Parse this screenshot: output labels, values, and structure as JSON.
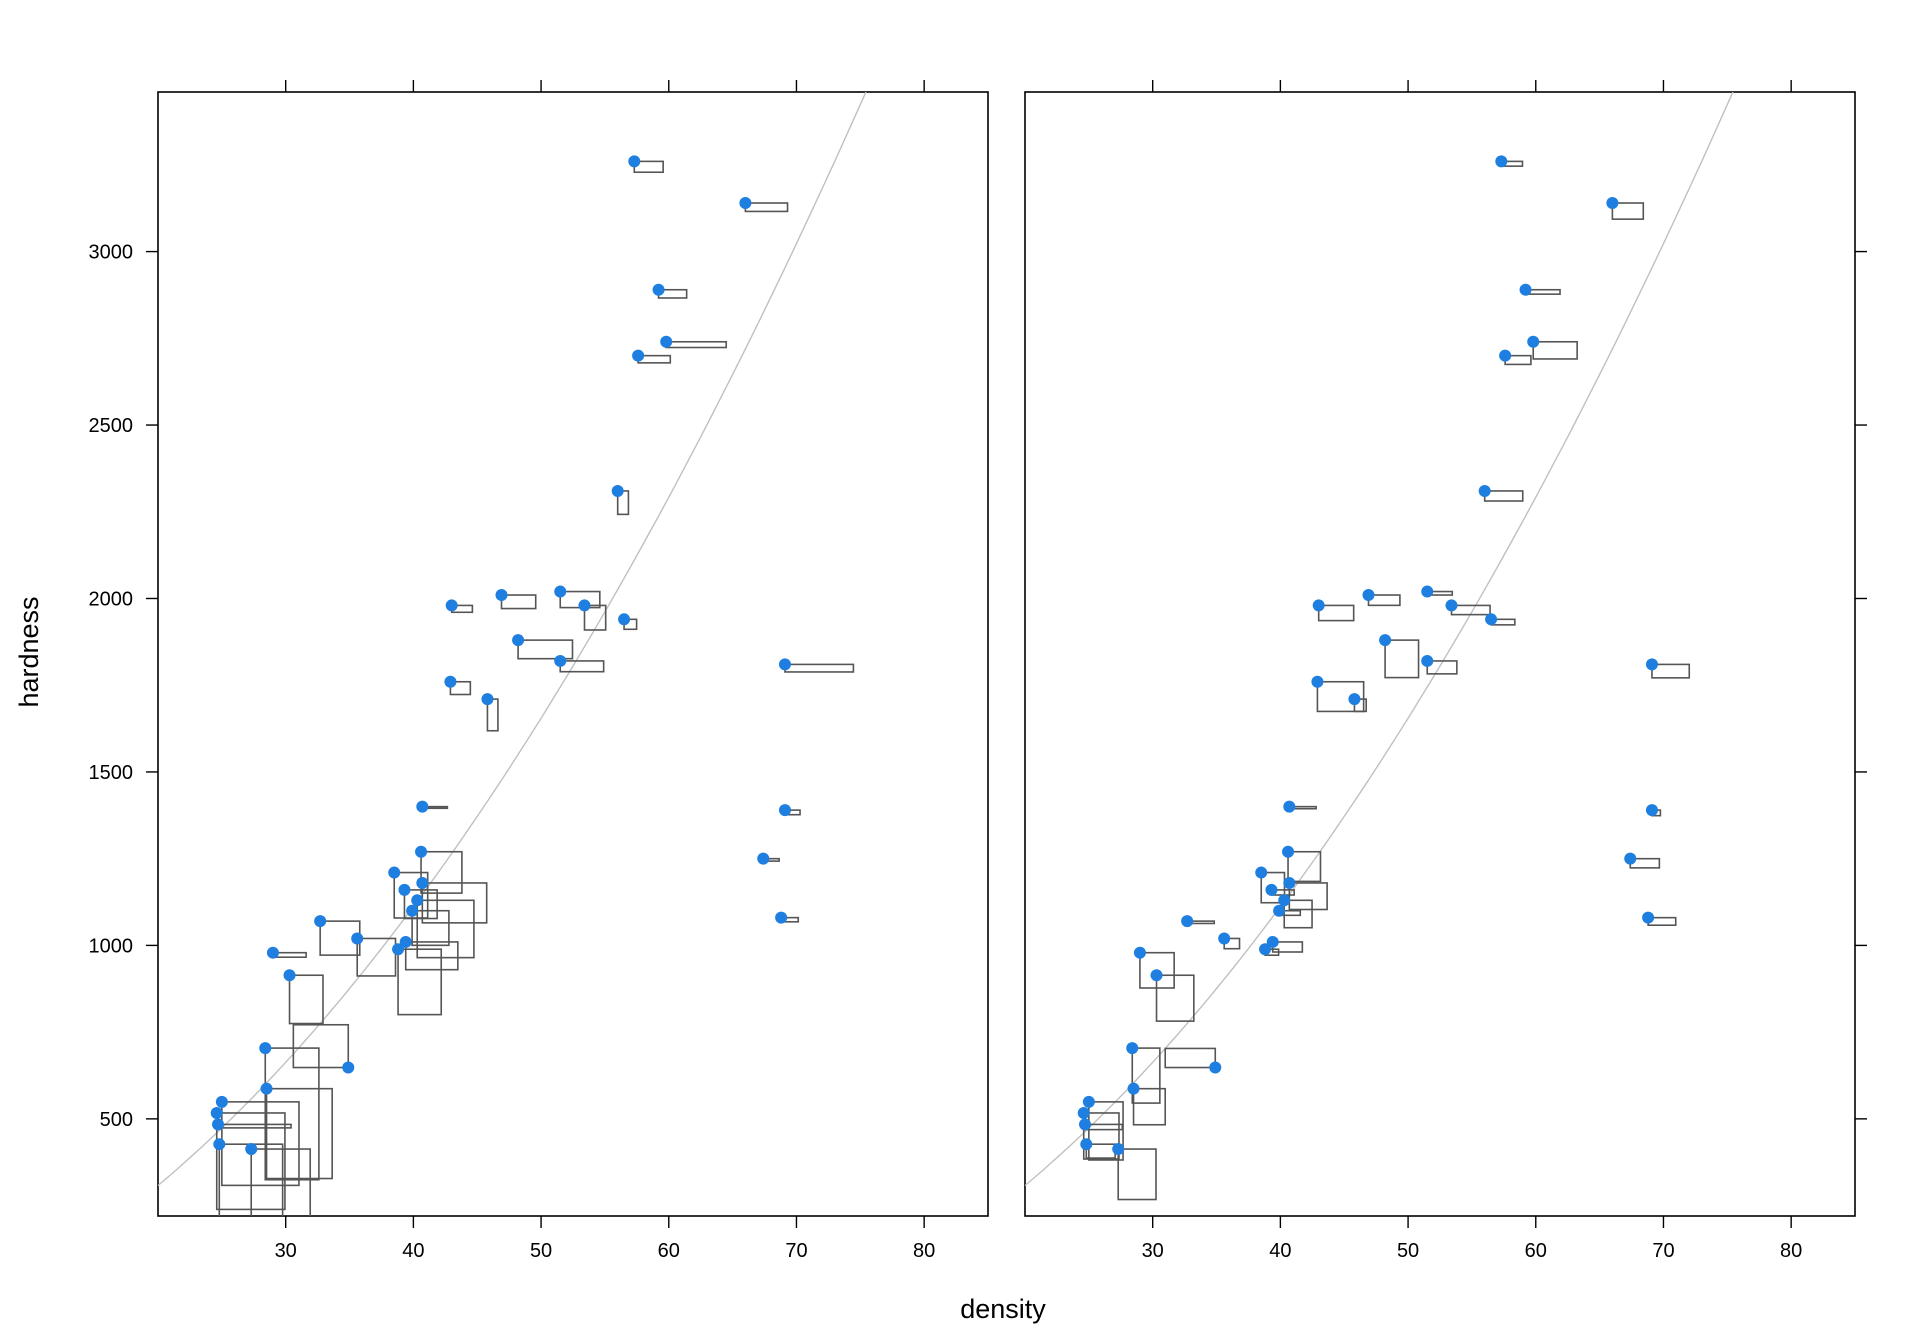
{
  "chart_data": {
    "type": "scatter",
    "xlabel": "density",
    "ylabel": "hardness",
    "xlim": [
      20,
      85
    ],
    "ylim": [
      220,
      3460
    ],
    "xticks": [
      30,
      40,
      50,
      60,
      70,
      80
    ],
    "yticks": [
      500,
      1000,
      1500,
      2000,
      2500,
      3000
    ],
    "x": [
      24.7,
      24.8,
      27.3,
      24.6,
      25.0,
      34.9,
      28.5,
      28.4,
      29.0,
      30.3,
      32.7,
      35.6,
      38.5,
      38.8,
      39.3,
      39.4,
      39.9,
      40.3,
      40.6,
      40.7,
      40.7,
      42.9,
      45.8,
      46.9,
      48.2,
      43.0,
      51.5,
      51.5,
      53.4,
      56.0,
      56.5,
      57.3,
      57.6,
      59.2,
      59.8,
      66.0,
      67.4,
      68.8,
      69.1,
      69.1
    ],
    "y": [
      484,
      427,
      413,
      517,
      549,
      648,
      587,
      704,
      979,
      914,
      1070,
      1020,
      1210,
      989,
      1160,
      1010,
      1100,
      1130,
      1270,
      1180,
      1400,
      1760,
      1710,
      2010,
      1880,
      1980,
      1820,
      2020,
      1980,
      2310,
      1940,
      3260,
      2700,
      2890,
      2740,
      3140,
      1250,
      1080,
      1390,
      1810
    ],
    "panels": [
      {
        "boxes": [
          [
            28.6,
            4.0
          ],
          [
            24.8,
            90.8
          ],
          [
            23.1,
            152.7
          ],
          [
            26.7,
            111.2
          ],
          [
            30.2,
            96.3
          ],
          [
            -21.5,
            -49.3
          ],
          [
            25.7,
            103.6
          ],
          [
            21.0,
            151.8
          ],
          [
            13.0,
            5.2
          ],
          [
            13.1,
            55.7
          ],
          [
            15.5,
            39.2
          ],
          [
            15.0,
            43.2
          ],
          [
            13.1,
            52.4
          ],
          [
            16.9,
            75.4
          ],
          [
            12.8,
            33.0
          ],
          [
            20.4,
            32.0
          ],
          [
            14.4,
            39.9
          ],
          [
            22.2,
            66.1
          ],
          [
            16.0,
            47.7
          ],
          [
            25.2,
            46.0
          ],
          [
            9.8,
            1.9
          ],
          [
            7.8,
            14.7
          ],
          [
            4.1,
            36.5
          ],
          [
            13.4,
            15.6
          ],
          [
            21.3,
            21.4
          ],
          [
            8.1,
            7.9
          ],
          [
            17.0,
            12.4
          ],
          [
            15.5,
            18.5
          ],
          [
            8.3,
            28.3
          ],
          [
            4.2,
            27.0
          ],
          [
            4.9,
            11.5
          ],
          [
            11.3,
            12.5
          ],
          [
            12.6,
            8.3
          ],
          [
            11.0,
            9.5
          ],
          [
            23.5,
            6.6
          ],
          [
            16.5,
            9.7
          ],
          [
            6.2,
            2.8
          ],
          [
            6.7,
            4.8
          ],
          [
            5.9,
            5.3
          ],
          [
            26.8,
            8.7
          ]
        ]
      },
      {
        "boxes": [
          [
            14.6,
            6.0
          ],
          [
            11.3,
            16.0
          ],
          [
            14.8,
            58.2
          ],
          [
            13.8,
            53.1
          ],
          [
            13.4,
            67.0
          ],
          [
            -19.6,
            -22.0
          ],
          [
            12.4,
            41.6
          ],
          [
            10.8,
            63.4
          ],
          [
            13.4,
            40.7
          ],
          [
            14.6,
            52.9
          ],
          [
            10.6,
            2.7
          ],
          [
            6.0,
            11.8
          ],
          [
            9.1,
            34.8
          ],
          [
            5.3,
            6.9
          ],
          [
            8.9,
            5.9
          ],
          [
            11.6,
            11.6
          ],
          [
            8.3,
            5.3
          ],
          [
            10.9,
            31.6
          ],
          [
            12.7,
            34.2
          ],
          [
            14.8,
            30.6
          ],
          [
            10.5,
            2.4
          ],
          [
            18.1,
            34.2
          ],
          [
            4.6,
            14.2
          ],
          [
            12.3,
            11.9
          ],
          [
            13.1,
            43.2
          ],
          [
            13.7,
            17.5
          ],
          [
            11.6,
            14.9
          ],
          [
            9.8,
            4.0
          ],
          [
            15.1,
            10.6
          ],
          [
            14.9,
            11.6
          ],
          [
            9.3,
            6.4
          ],
          [
            8.3,
            5.5
          ],
          [
            10.1,
            10.1
          ],
          [
            13.5,
            5.1
          ],
          [
            17.2,
            19.8
          ],
          [
            12.1,
            18.6
          ],
          [
            11.4,
            10.6
          ],
          [
            10.8,
            8.7
          ],
          [
            3.3,
            6.4
          ],
          [
            14.6,
            15.5
          ]
        ]
      }
    ]
  },
  "colors": {
    "points": "#1e7fe0",
    "boxes": "#555555",
    "curve": "#c0c0c0",
    "axes": "#000000"
  }
}
